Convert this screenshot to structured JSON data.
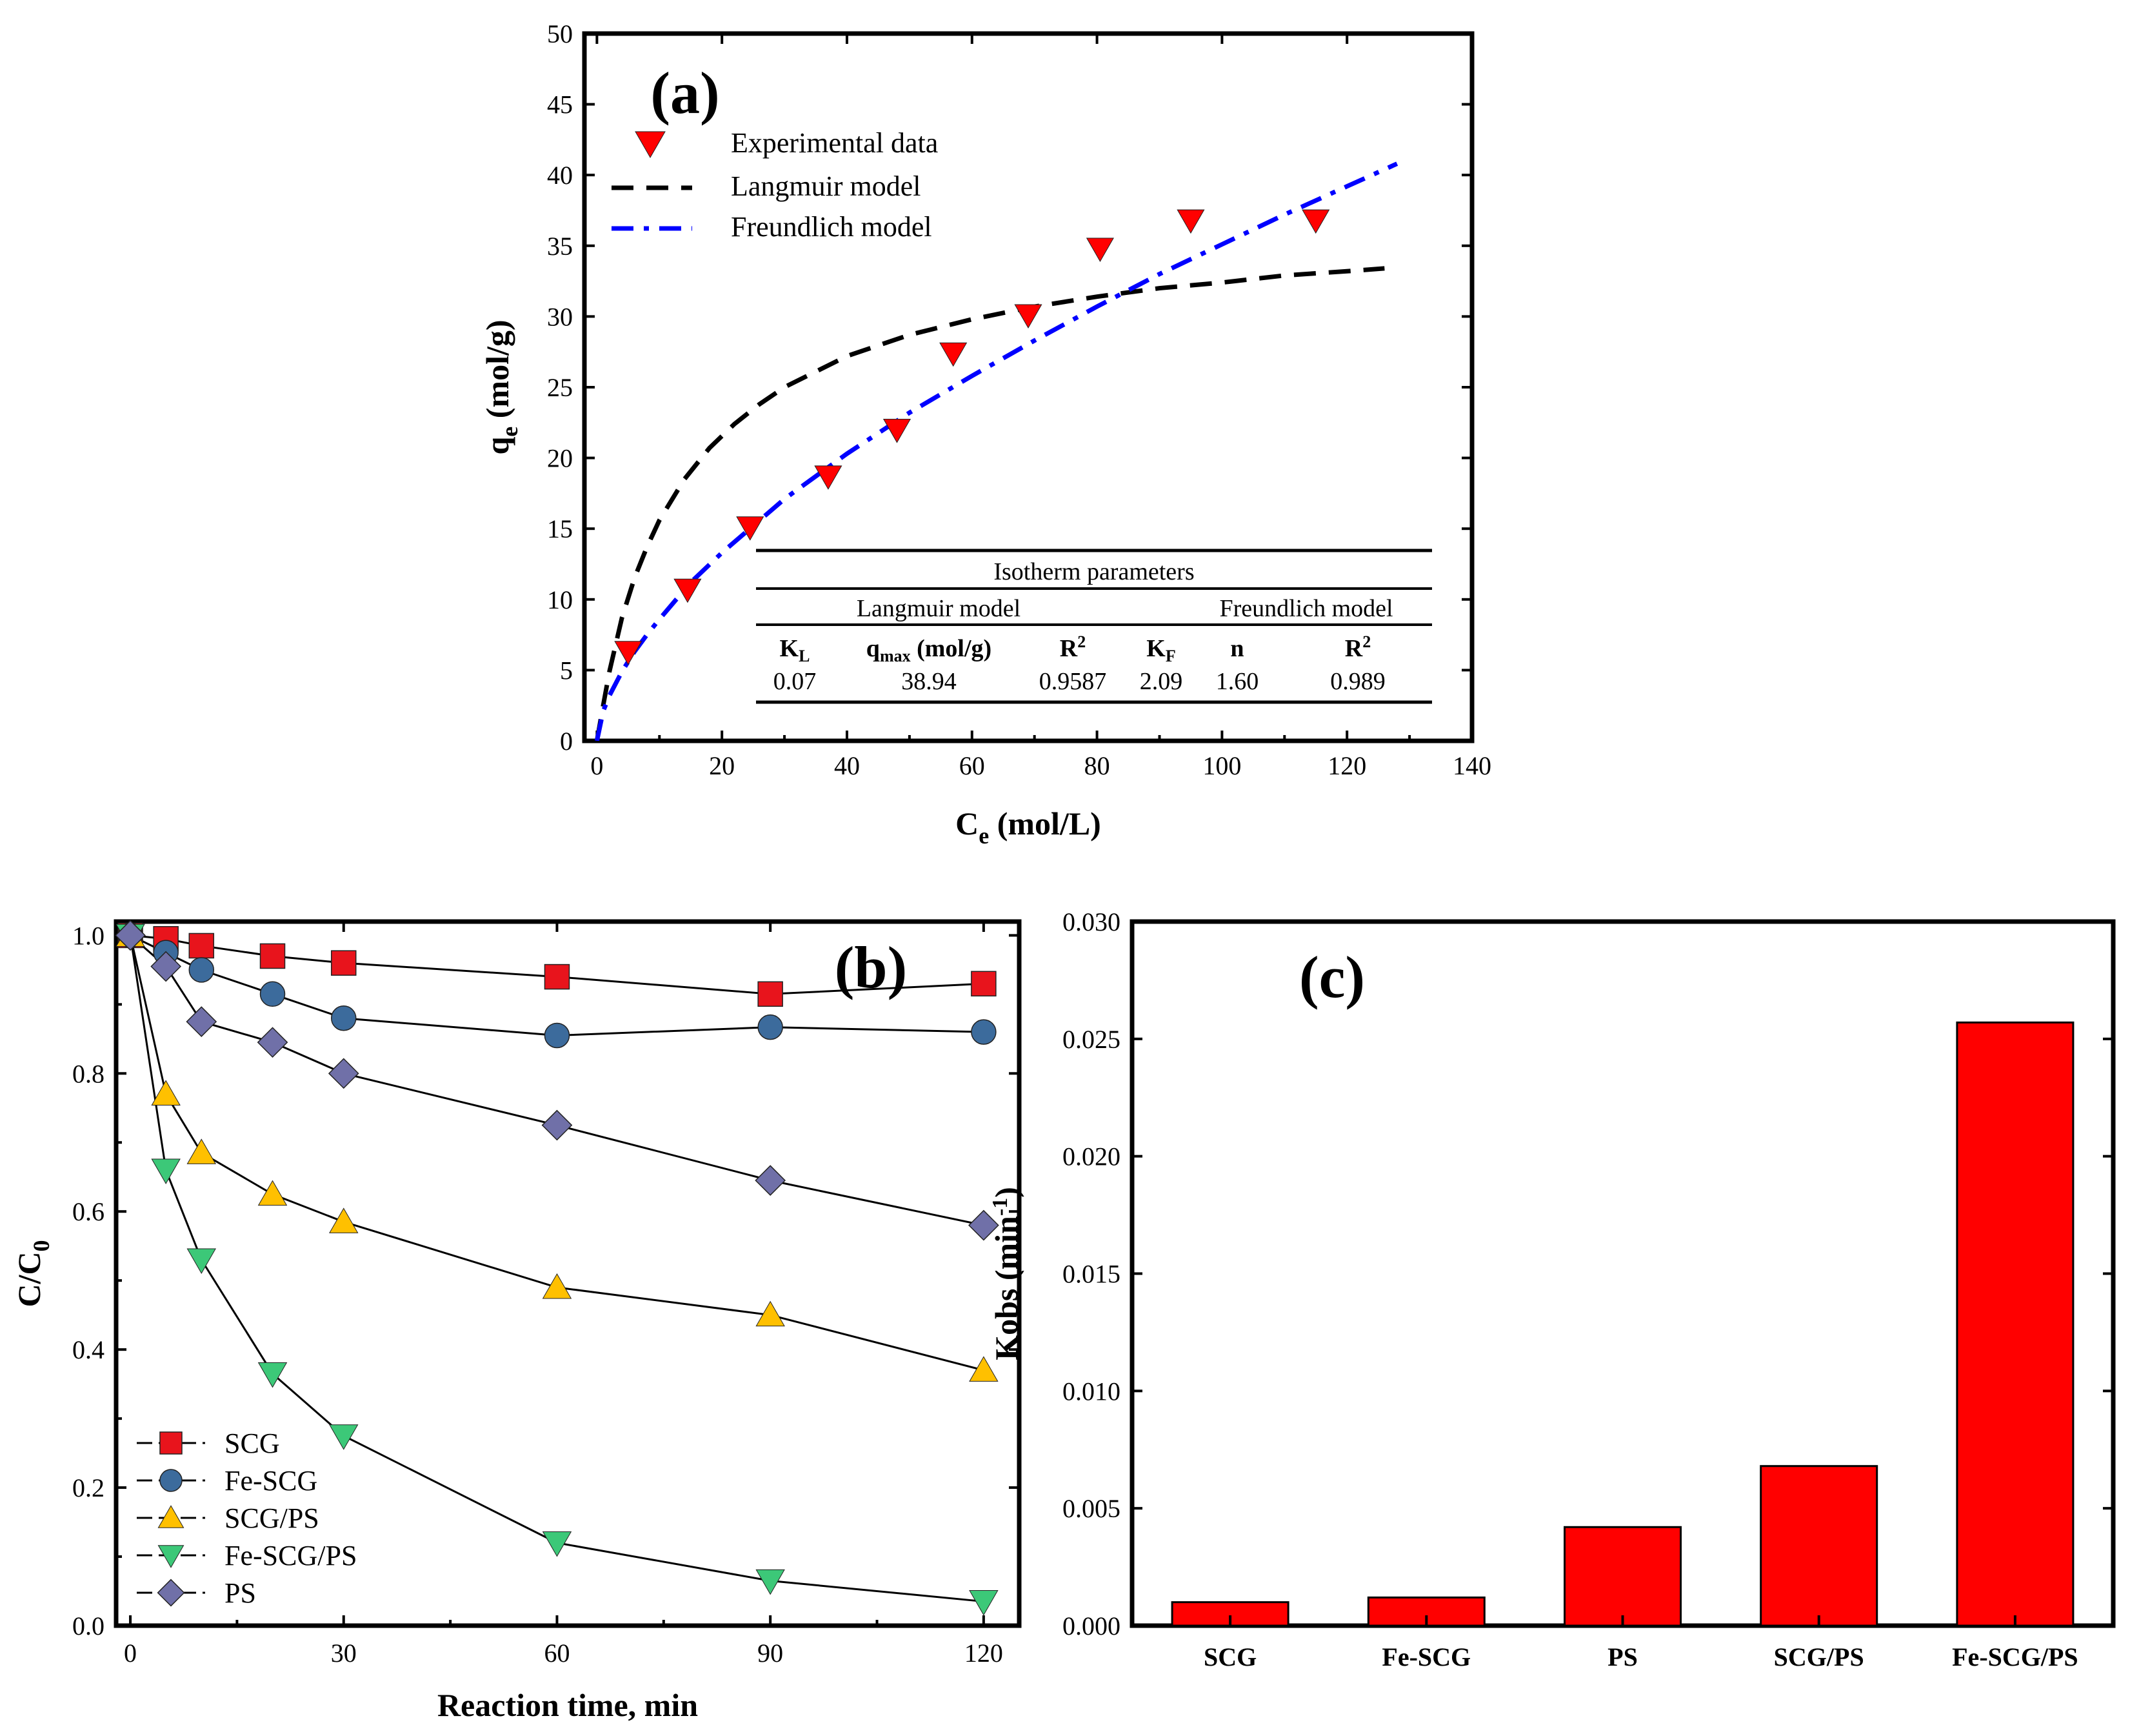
{
  "chart_data": [
    {
      "panel": "(a)",
      "type": "scatter",
      "xlabel": "C",
      "xlabel_sub": "e",
      "xlabel_unit": " (mol/L)",
      "ylabel": "q",
      "ylabel_sub": "e",
      "ylabel_unit": " (mol/g)",
      "xlim": [
        -2,
        140
      ],
      "ylim": [
        0,
        50
      ],
      "xticks": [
        0,
        20,
        40,
        60,
        80,
        100,
        120,
        140
      ],
      "yticks": [
        0,
        5,
        10,
        15,
        20,
        25,
        30,
        35,
        40,
        45,
        50
      ],
      "series": [
        {
          "name": "Experimental data",
          "kind": "marker",
          "marker": "triangle-down",
          "color": "#ff0000",
          "x": [
            5,
            14.5,
            24.5,
            37,
            48,
            57,
            69,
            80.5,
            95,
            115
          ],
          "y": [
            6.3,
            10.7,
            15.1,
            18.7,
            22,
            27.4,
            30.1,
            34.8,
            36.8,
            36.8
          ]
        },
        {
          "name": "Langmuir model",
          "kind": "line",
          "dash": "dashed",
          "color": "#000000",
          "x": [
            0,
            1,
            2,
            4,
            6,
            8,
            10,
            14,
            18,
            22,
            26,
            30,
            40,
            50,
            60,
            70,
            80,
            90,
            100,
            110,
            120,
            126
          ],
          "y": [
            0,
            2.5,
            4.9,
            8.7,
            11.5,
            13.7,
            15.6,
            18.5,
            20.7,
            22.4,
            23.8,
            25.0,
            27.2,
            28.7,
            29.8,
            30.7,
            31.4,
            32.0,
            32.4,
            32.9,
            33.2,
            33.4
          ]
        },
        {
          "name": "Freundlich model",
          "kind": "line",
          "dash": "dashdot",
          "color": "#0000ff",
          "x": [
            0,
            1,
            2,
            4,
            6,
            8,
            10,
            15,
            20,
            25,
            30,
            40,
            50,
            60,
            70,
            80,
            90,
            100,
            110,
            120,
            128
          ],
          "y": [
            0,
            2.1,
            3.2,
            4.9,
            6.3,
            7.5,
            8.6,
            11.2,
            13.3,
            15.2,
            17.1,
            20.3,
            23.2,
            25.8,
            28.3,
            30.7,
            33.0,
            35.1,
            37.2,
            39.2,
            40.8
          ]
        }
      ],
      "legend_position": "upper-left",
      "table": {
        "title": "Isotherm parameters",
        "group1": "Langmuir model",
        "group2": "Freundlich model",
        "headers": [
          {
            "main": "K",
            "sub": "L",
            "rest": ""
          },
          {
            "main": "q",
            "sub": "max",
            "rest": " (mol/g)"
          },
          {
            "main": "R",
            "sup": "2",
            "rest": ""
          },
          {
            "main": "K",
            "sub": "F",
            "rest": ""
          },
          {
            "main": "n",
            "rest": ""
          },
          {
            "main": "R",
            "sup": "2",
            "rest": ""
          }
        ],
        "values": [
          "0.07",
          "38.94",
          "0.9587",
          "2.09",
          "1.60",
          "0.989"
        ]
      }
    },
    {
      "panel": "(b)",
      "type": "line",
      "xlabel": "Reaction time, min",
      "ylabel": "C/C",
      "ylabel_sub": "0",
      "xlim": [
        -2,
        125
      ],
      "ylim": [
        0,
        1.02
      ],
      "xticks": [
        0,
        30,
        60,
        90,
        120
      ],
      "yticks": [
        0.0,
        0.2,
        0.4,
        0.6,
        0.8,
        1.0
      ],
      "ytick_labels": [
        "0.0",
        "0.2",
        "0.4",
        "0.6",
        "0.8",
        "1.0"
      ],
      "x": [
        0,
        5,
        10,
        20,
        30,
        60,
        90,
        120
      ],
      "series": [
        {
          "name": "SCG",
          "marker": "square",
          "color": "#e8141c",
          "values": [
            1.0,
            0.995,
            0.985,
            0.97,
            0.96,
            0.94,
            0.915,
            0.93
          ]
        },
        {
          "name": "Fe-SCG",
          "marker": "circle",
          "color": "#3c6b9c",
          "values": [
            1.0,
            0.975,
            0.95,
            0.915,
            0.88,
            0.855,
            0.867,
            0.86
          ]
        },
        {
          "name": "SCG/PS",
          "marker": "triangle-up",
          "color": "#ffc000",
          "values": [
            1.0,
            0.77,
            0.685,
            0.625,
            0.585,
            0.49,
            0.45,
            0.37
          ]
        },
        {
          "name": "Fe-SCG/PS",
          "marker": "triangle-down",
          "color": "#3cc878",
          "values": [
            1.0,
            0.66,
            0.53,
            0.365,
            0.275,
            0.12,
            0.065,
            0.035
          ]
        },
        {
          "name": "PS",
          "marker": "diamond",
          "color": "#7070a8",
          "values": [
            1.0,
            0.955,
            0.875,
            0.845,
            0.8,
            0.725,
            0.645,
            0.58
          ]
        }
      ],
      "legend_position": "lower-left"
    },
    {
      "panel": "(c)",
      "type": "bar",
      "ylabel": "Kobs (min",
      "ylabel_sup": "-1",
      "ylabel_close": ")",
      "ylim": [
        0,
        0.03
      ],
      "yticks": [
        0.0,
        0.005,
        0.01,
        0.015,
        0.02,
        0.025,
        0.03
      ],
      "ytick_labels": [
        "0.000",
        "0.005",
        "0.010",
        "0.015",
        "0.020",
        "0.025",
        "0.030"
      ],
      "categories": [
        "SCG",
        "Fe-SCG",
        "PS",
        "SCG/PS",
        "Fe-SCG/PS"
      ],
      "values": [
        0.001,
        0.0012,
        0.0042,
        0.0068,
        0.0257
      ],
      "color": "#ff0000"
    }
  ]
}
